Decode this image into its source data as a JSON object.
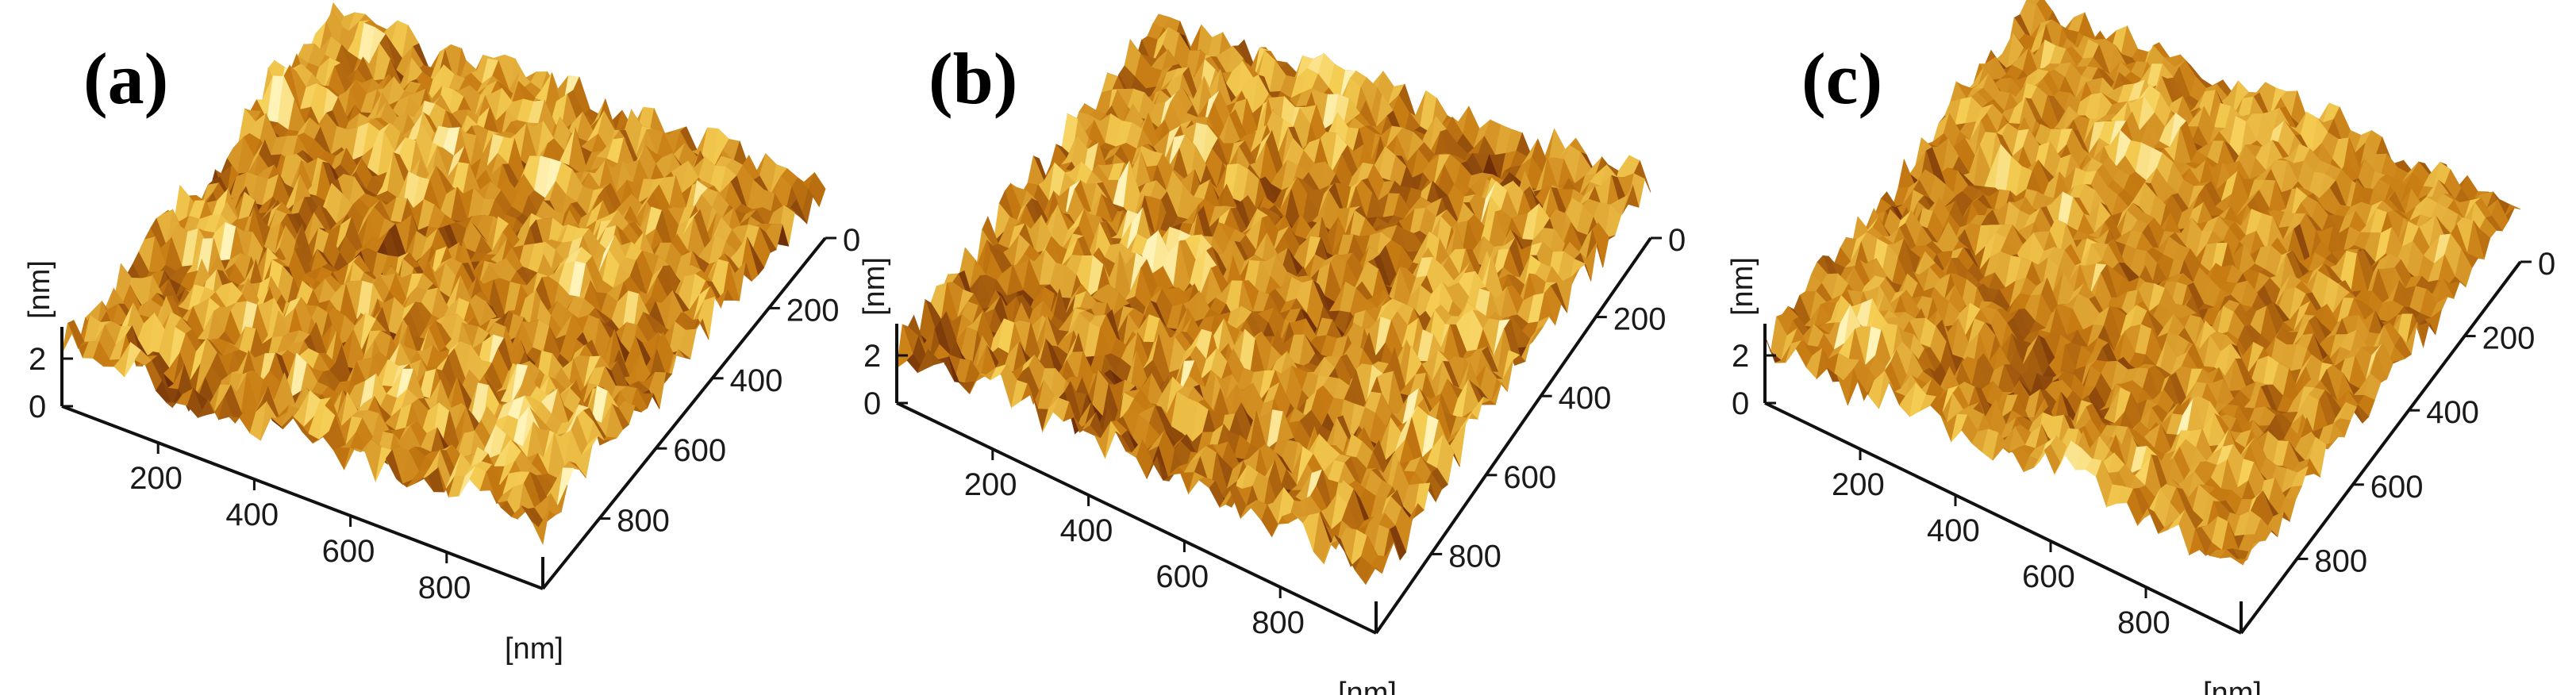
{
  "panels": [
    {
      "label": "(a)",
      "z_unit": "[nm]",
      "z_ticks": [
        "0",
        "2"
      ],
      "x_ticks": [
        "200",
        "400",
        "600",
        "800"
      ],
      "y_ticks": [
        "0",
        "200",
        "400",
        "600",
        "800"
      ],
      "x_unit": "[nm]",
      "seed": 11,
      "roughness": 1.0,
      "contrast": 1.0
    },
    {
      "label": "(b)",
      "z_unit": "[nm]",
      "z_ticks": [
        "0",
        "2"
      ],
      "x_ticks": [
        "200",
        "400",
        "600",
        "800"
      ],
      "y_ticks": [
        "0",
        "200",
        "400",
        "600",
        "800"
      ],
      "x_unit": "[nm]",
      "seed": 23,
      "roughness": 1.15,
      "contrast": 1.25
    },
    {
      "label": "(c)",
      "z_unit": "[nm]",
      "z_ticks": [
        "0",
        "2"
      ],
      "x_ticks": [
        "200",
        "400",
        "600",
        "800"
      ],
      "y_ticks": [
        "0",
        "200",
        "400",
        "600",
        "800"
      ],
      "x_unit": "[nm]",
      "seed": 37,
      "roughness": 0.8,
      "contrast": 0.85
    }
  ],
  "colors": {
    "dark": "#6e2e08",
    "mid": "#c77b12",
    "light": "#f5cd52",
    "highlight": "#fff3b8"
  }
}
